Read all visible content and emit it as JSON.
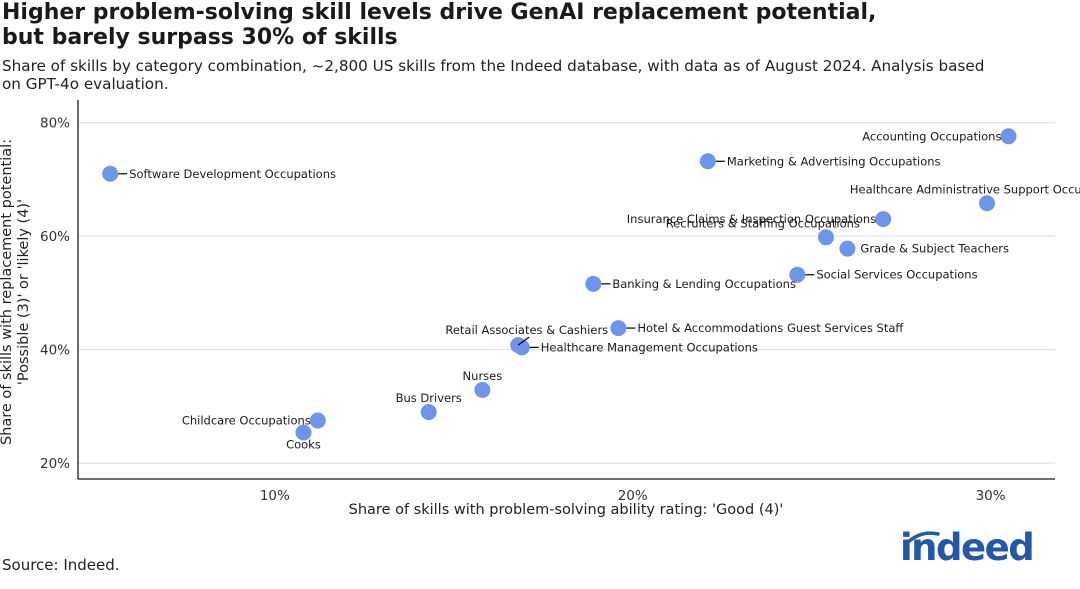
{
  "header": {
    "title_line1": "Higher problem-solving skill levels drive GenAI replacement potential,",
    "title_line2": "but barely surpass 30% of skills",
    "subtitle_line1": "Share of skills by category combination, ~2,800 US skills from the Indeed database, with data as of August 2024. Analysis based",
    "subtitle_line2": "on GPT-4o evaluation."
  },
  "footer": {
    "source": "Source: Indeed.",
    "logo": "indeed"
  },
  "colors": {
    "point": "#6f95ea",
    "grid": "#dddddd",
    "axis": "#1a1a1a",
    "text": "#1a1a1a",
    "brand": "#2557a7"
  },
  "chart_data": {
    "type": "scatter",
    "xlabel": "Share of skills with problem-solving ability rating: 'Good (4)'",
    "ylabel_line1": "Share of skills with replacement potential:",
    "ylabel_line2": "'Possible (3)' or 'likely (4)'",
    "xlim": [
      4.5,
      31.8
    ],
    "ylim": [
      17.2,
      84
    ],
    "xticks": [
      {
        "value": 10,
        "label": "10%"
      },
      {
        "value": 20,
        "label": "20%"
      },
      {
        "value": 30,
        "label": "30%"
      }
    ],
    "yticks": [
      {
        "value": 20,
        "label": "20%"
      },
      {
        "value": 40,
        "label": "40%"
      },
      {
        "value": 60,
        "label": "60%"
      },
      {
        "value": 80,
        "label": "80%"
      }
    ],
    "grid": "horizontal",
    "points": [
      {
        "label": "Software Development Occupations",
        "x": 5.4,
        "y": 71.0,
        "anchor": "right",
        "leader": true
      },
      {
        "label": "Accounting Occupations",
        "x": 30.5,
        "y": 77.6,
        "anchor": "left",
        "leader": false
      },
      {
        "label": "Marketing & Advertising Occupations",
        "x": 22.1,
        "y": 73.2,
        "anchor": "right",
        "leader": true
      },
      {
        "label": "Healthcare Administrative Support Occupations",
        "x": 29.9,
        "y": 65.8,
        "anchor": "above",
        "leader": false
      },
      {
        "label": "Insurance Claims & Inspection Occupations",
        "x": 27.0,
        "y": 63.0,
        "anchor": "left",
        "leader": false
      },
      {
        "label": "Recruiters & Staffing Occupations",
        "x": 25.4,
        "y": 59.8,
        "anchor": "above-left",
        "leader": false
      },
      {
        "label": "Grade & Subject Teachers",
        "x": 26.0,
        "y": 57.8,
        "anchor": "right",
        "leader": false
      },
      {
        "label": "Social Services Occupations",
        "x": 24.6,
        "y": 53.2,
        "anchor": "right",
        "leader": true
      },
      {
        "label": "Banking & Lending Occupations",
        "x": 18.9,
        "y": 51.6,
        "anchor": "right",
        "leader": true
      },
      {
        "label": "Hotel & Accommodations Guest Services Staff",
        "x": 19.6,
        "y": 43.8,
        "anchor": "right",
        "leader": true
      },
      {
        "label": "Retail Associates & Cashiers",
        "x": 16.8,
        "y": 40.8,
        "anchor": "above-left",
        "leader": true
      },
      {
        "label": "Healthcare Management Occupations",
        "x": 16.9,
        "y": 40.4,
        "anchor": "right",
        "leader": true
      },
      {
        "label": "Nurses",
        "x": 15.8,
        "y": 32.9,
        "anchor": "above",
        "leader": false
      },
      {
        "label": "Bus Drivers",
        "x": 14.3,
        "y": 29.0,
        "anchor": "above",
        "leader": false
      },
      {
        "label": "Childcare Occupations",
        "x": 11.2,
        "y": 27.5,
        "anchor": "left",
        "leader": false
      },
      {
        "label": "Cooks",
        "x": 10.8,
        "y": 25.4,
        "anchor": "below",
        "leader": false
      }
    ]
  }
}
